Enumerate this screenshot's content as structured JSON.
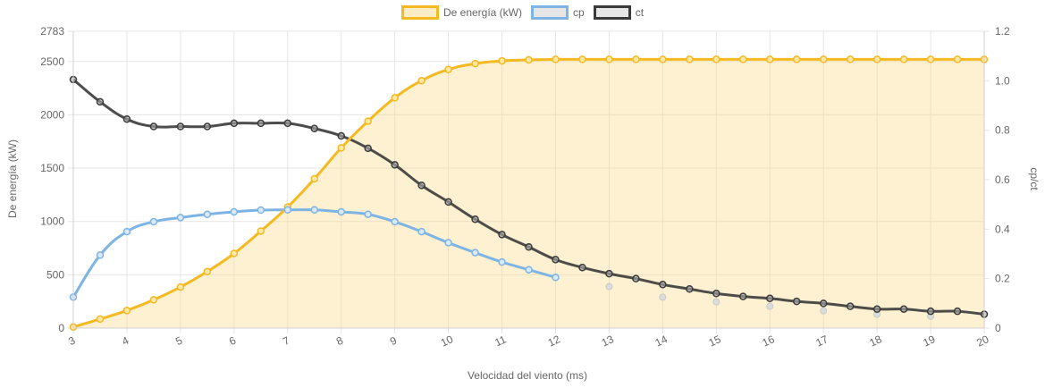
{
  "chart_data": {
    "type": "line",
    "xlabel": "Velocidad del viento (ms)",
    "ylabel_left": "De energía (kW)",
    "ylabel_right": "cp/ct",
    "x_ticks": [
      "3",
      "4",
      "5",
      "6",
      "7",
      "8",
      "9",
      "10",
      "11",
      "12",
      "13",
      "14",
      "15",
      "16",
      "17",
      "18",
      "19",
      "20"
    ],
    "y_left_ticks": [
      "0",
      "500",
      "1000",
      "1500",
      "2000",
      "2500",
      "2783"
    ],
    "y_right_ticks": [
      "0",
      "0.2",
      "0.4",
      "0.6",
      "0.8",
      "1.0",
      "1.2"
    ],
    "xlim": [
      3,
      20
    ],
    "ylim_left": [
      0,
      2783
    ],
    "ylim_right": [
      0,
      1.2
    ],
    "grid": true,
    "legend_position": "top-center",
    "series": [
      {
        "name": "De energía (kW)",
        "axis": "left",
        "color": "#f5b921",
        "fill": "rgba(250,220,140,0.4)",
        "x": [
          3,
          3.5,
          4,
          4.5,
          5,
          5.5,
          6,
          6.5,
          7,
          7.5,
          8,
          8.5,
          9,
          9.5,
          10,
          10.5,
          11,
          11.5,
          12,
          12.5,
          13,
          13.5,
          14,
          14.5,
          15,
          15.5,
          16,
          16.5,
          17,
          17.5,
          18,
          18.5,
          19,
          19.5,
          20
        ],
        "y": [
          10,
          85,
          165,
          265,
          385,
          530,
          700,
          910,
          1135,
          1400,
          1690,
          1940,
          2160,
          2320,
          2425,
          2480,
          2505,
          2515,
          2520,
          2520,
          2520,
          2520,
          2520,
          2520,
          2520,
          2520,
          2520,
          2520,
          2520,
          2520,
          2520,
          2520,
          2520,
          2520,
          2520
        ]
      },
      {
        "name": "cp",
        "axis": "right",
        "color": "#7eb4e3",
        "x": [
          3,
          3.5,
          4,
          4.5,
          5,
          5.5,
          6,
          6.5,
          7,
          7.5,
          8,
          8.5,
          9,
          9.5,
          10,
          10.5,
          11,
          11.5,
          12
        ],
        "y": [
          0.125,
          0.295,
          0.39,
          0.43,
          0.447,
          0.46,
          0.47,
          0.477,
          0.478,
          0.478,
          0.47,
          0.46,
          0.43,
          0.39,
          0.345,
          0.305,
          0.267,
          0.236,
          0.205
        ],
        "extra_points": {
          "x": [
            13,
            14,
            15,
            16,
            17,
            18,
            19
          ],
          "y": [
            0.168,
            0.125,
            0.106,
            0.088,
            0.07,
            0.056,
            0.048
          ]
        }
      },
      {
        "name": "ct",
        "axis": "right",
        "color": "#3a3a3a",
        "x": [
          3,
          3.5,
          4,
          4.5,
          5,
          5.5,
          6,
          6.5,
          7,
          7.5,
          8,
          8.5,
          9,
          9.5,
          10,
          10.5,
          11,
          11.5,
          12,
          12.5,
          13,
          13.5,
          14,
          14.5,
          15,
          15.5,
          16,
          16.5,
          17,
          17.5,
          18,
          18.5,
          19,
          19.5,
          20
        ],
        "y": [
          1.005,
          0.915,
          0.845,
          0.815,
          0.815,
          0.815,
          0.828,
          0.828,
          0.828,
          0.807,
          0.777,
          0.727,
          0.66,
          0.577,
          0.51,
          0.44,
          0.378,
          0.328,
          0.277,
          0.245,
          0.22,
          0.2,
          0.176,
          0.158,
          0.14,
          0.128,
          0.12,
          0.108,
          0.1,
          0.088,
          0.077,
          0.077,
          0.068,
          0.068,
          0.056
        ]
      }
    ]
  }
}
